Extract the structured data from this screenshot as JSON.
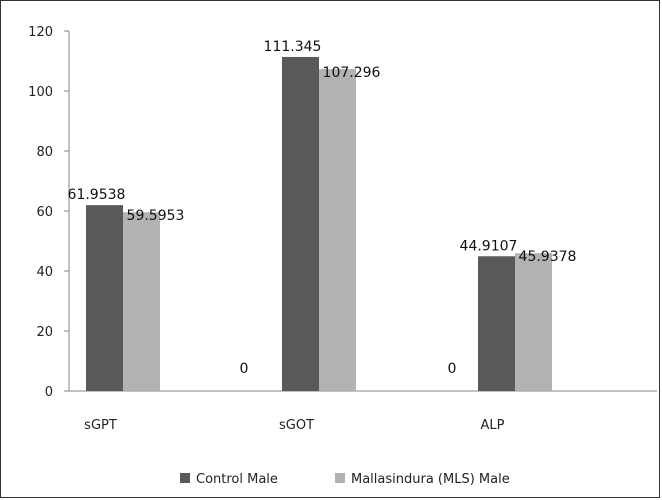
{
  "chart_data": {
    "type": "bar",
    "categories": [
      "sGPT",
      "sGOT",
      "ALP"
    ],
    "series": [
      {
        "name": "Control Male",
        "values": [
          61.9538,
          111.345,
          44.9107
        ],
        "value_labels": [
          "61.9538",
          "111.345",
          "44.9107"
        ],
        "color": "#595959"
      },
      {
        "name": "Mallasindura (MLS) Male",
        "values": [
          59.5953,
          107.296,
          45.9378
        ],
        "value_labels": [
          "59.5953",
          "107.296",
          "45.9378"
        ],
        "color": "#b2b2b2"
      }
    ],
    "extra_labels": [
      "0",
      "0"
    ],
    "title": "",
    "xlabel": "",
    "ylabel": "",
    "ylim": [
      0,
      120
    ],
    "yticks": [
      "0",
      "20",
      "40",
      "60",
      "80",
      "100",
      "120"
    ],
    "grid": false,
    "legend_position": "bottom"
  }
}
